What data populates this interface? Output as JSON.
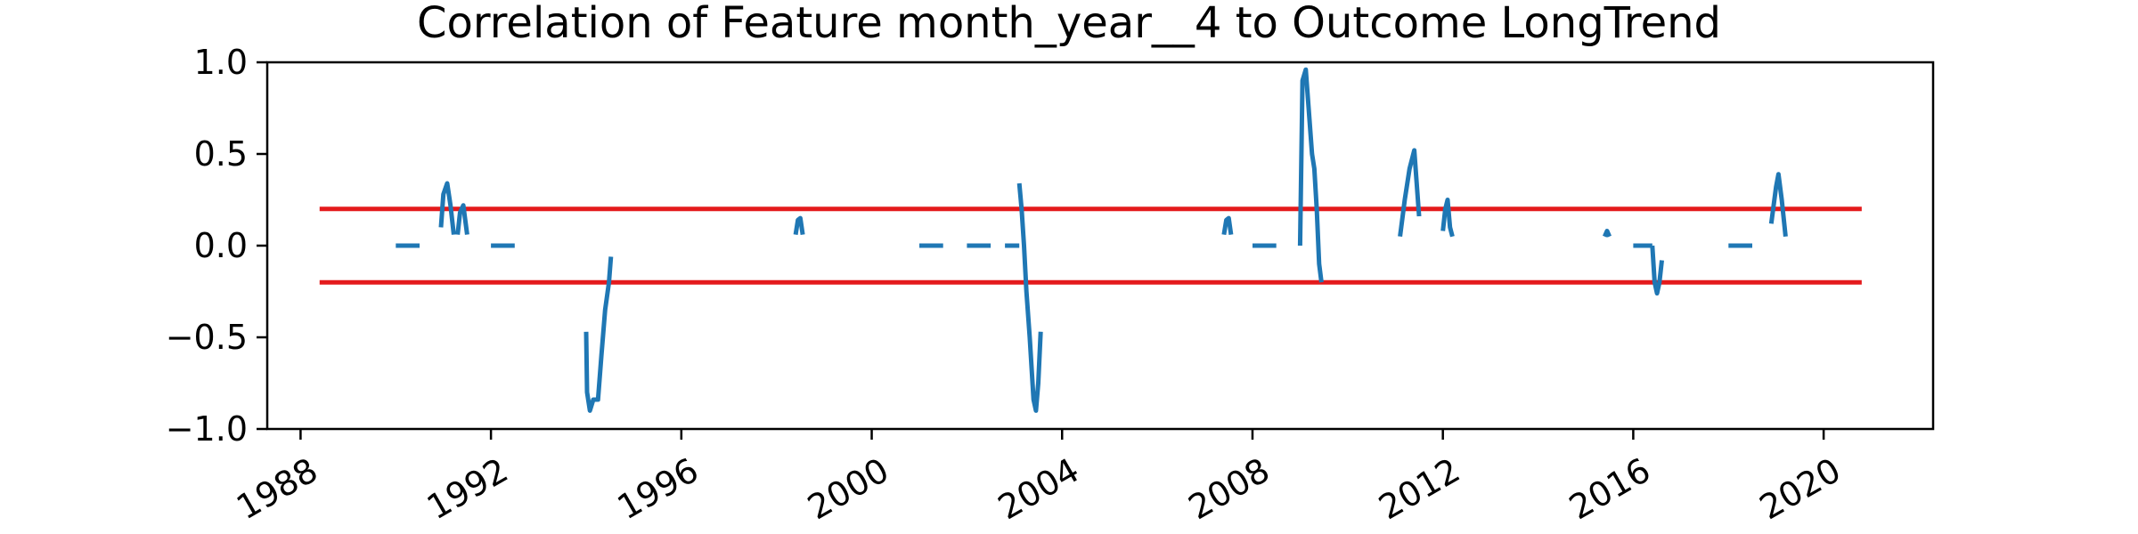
{
  "chart_data": {
    "type": "line",
    "title": "Correlation of Feature month_year__4 to Outcome LongTrend",
    "xlabel": "",
    "ylabel": "",
    "xlim": [
      1987.3,
      2022.3
    ],
    "ylim": [
      -1.0,
      1.0
    ],
    "x_ticks": [
      1988,
      1992,
      1996,
      2000,
      2004,
      2008,
      2012,
      2016,
      2020
    ],
    "x_tick_labels": [
      "1988",
      "1992",
      "1996",
      "2000",
      "2004",
      "2008",
      "2012",
      "2016",
      "2020"
    ],
    "y_ticks": [
      -1.0,
      -0.5,
      0.0,
      0.5,
      1.0
    ],
    "y_tick_labels": [
      "−1.0",
      "−0.5",
      "0.0",
      "0.5",
      "1.0"
    ],
    "grid": false,
    "series": [
      {
        "color": "#1f77b4",
        "segments": [
          [
            [
              1990.0,
              0.0
            ],
            [
              1990.5,
              0.0
            ]
          ],
          [
            [
              1990.95,
              0.1
            ],
            [
              1991.0,
              0.28
            ],
            [
              1991.08,
              0.34
            ],
            [
              1991.15,
              0.22
            ],
            [
              1991.22,
              0.06
            ]
          ],
          [
            [
              1991.3,
              0.06
            ],
            [
              1991.35,
              0.18
            ],
            [
              1991.42,
              0.22
            ],
            [
              1991.5,
              0.06
            ]
          ],
          [
            [
              1992.0,
              0.0
            ],
            [
              1992.5,
              0.0
            ]
          ],
          [
            [
              1994.0,
              -0.47
            ],
            [
              1994.02,
              -0.8
            ],
            [
              1994.08,
              -0.9
            ],
            [
              1994.15,
              -0.84
            ],
            [
              1994.25,
              -0.84
            ],
            [
              1994.32,
              -0.6
            ],
            [
              1994.4,
              -0.35
            ],
            [
              1994.48,
              -0.2
            ],
            [
              1994.52,
              -0.06
            ]
          ],
          [
            [
              1998.4,
              0.06
            ],
            [
              1998.45,
              0.14
            ],
            [
              1998.5,
              0.15
            ],
            [
              1998.55,
              0.06
            ]
          ],
          [
            [
              2001.0,
              0.0
            ],
            [
              2001.5,
              0.0
            ]
          ],
          [
            [
              2002.0,
              0.0
            ],
            [
              2002.5,
              0.0
            ]
          ],
          [
            [
              2002.8,
              0.0
            ],
            [
              2003.1,
              0.0
            ]
          ],
          [
            [
              2003.1,
              0.34
            ],
            [
              2003.15,
              0.2
            ],
            [
              2003.2,
              0.0
            ],
            [
              2003.25,
              -0.25
            ],
            [
              2003.32,
              -0.5
            ],
            [
              2003.4,
              -0.84
            ],
            [
              2003.45,
              -0.9
            ],
            [
              2003.5,
              -0.75
            ],
            [
              2003.55,
              -0.47
            ]
          ],
          [
            [
              2007.4,
              0.06
            ],
            [
              2007.45,
              0.14
            ],
            [
              2007.5,
              0.15
            ],
            [
              2007.55,
              0.06
            ]
          ],
          [
            [
              2008.0,
              0.0
            ],
            [
              2008.5,
              0.0
            ]
          ],
          [
            [
              2009.0,
              0.0
            ],
            [
              2009.05,
              0.9
            ],
            [
              2009.12,
              0.96
            ],
            [
              2009.18,
              0.75
            ],
            [
              2009.25,
              0.5
            ],
            [
              2009.3,
              0.42
            ],
            [
              2009.35,
              0.2
            ],
            [
              2009.4,
              -0.1
            ],
            [
              2009.45,
              -0.2
            ]
          ],
          [
            [
              2011.1,
              0.05
            ],
            [
              2011.2,
              0.25
            ],
            [
              2011.3,
              0.42
            ],
            [
              2011.4,
              0.52
            ],
            [
              2011.5,
              0.16
            ]
          ],
          [
            [
              2012.0,
              0.08
            ],
            [
              2012.05,
              0.2
            ],
            [
              2012.1,
              0.25
            ],
            [
              2012.15,
              0.1
            ],
            [
              2012.2,
              0.05
            ]
          ],
          [
            [
              2015.4,
              0.05
            ],
            [
              2015.45,
              0.08
            ],
            [
              2015.5,
              0.05
            ]
          ],
          [
            [
              2016.0,
              0.0
            ],
            [
              2016.4,
              0.0
            ]
          ],
          [
            [
              2016.4,
              0.0
            ],
            [
              2016.45,
              -0.2
            ],
            [
              2016.5,
              -0.26
            ],
            [
              2016.55,
              -0.2
            ],
            [
              2016.6,
              -0.08
            ]
          ],
          [
            [
              2018.0,
              0.0
            ],
            [
              2018.5,
              0.0
            ]
          ],
          [
            [
              2018.9,
              0.12
            ],
            [
              2019.0,
              0.32
            ],
            [
              2019.05,
              0.39
            ],
            [
              2019.12,
              0.25
            ],
            [
              2019.2,
              0.05
            ]
          ]
        ]
      }
    ],
    "reference_lines": [
      {
        "y": 0.2,
        "x_start": 1988.4,
        "x_end": 2020.8,
        "color": "#e41a1c"
      },
      {
        "y": -0.2,
        "x_start": 1988.4,
        "x_end": 2020.8,
        "color": "#e41a1c"
      }
    ]
  }
}
